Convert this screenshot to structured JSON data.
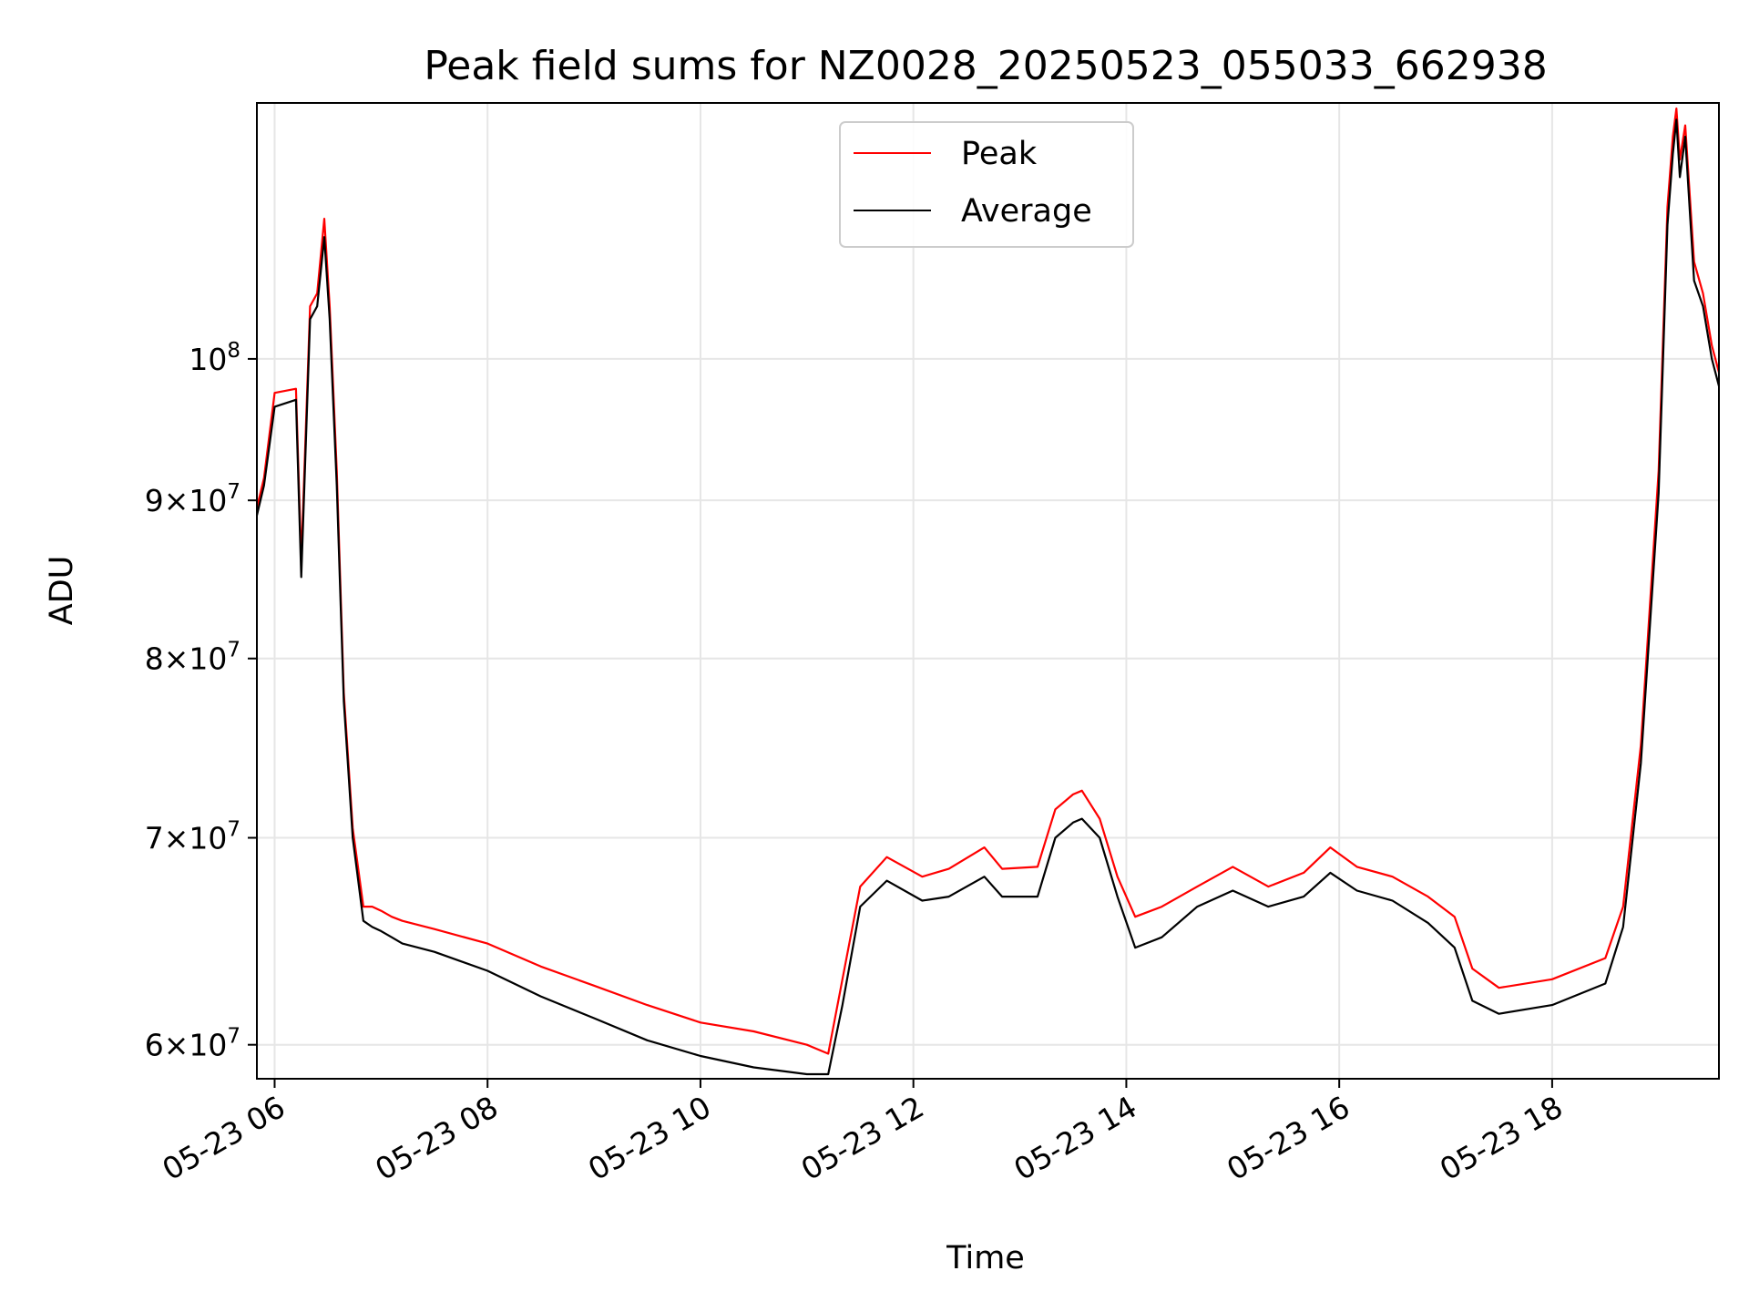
{
  "chart_data": {
    "type": "line",
    "title": "Peak field sums for NZ0028_20250523_055033_662938",
    "xlabel": "Time",
    "ylabel": "ADU",
    "yscale": "log",
    "grid": true,
    "legend_position": "top-center",
    "xlim": [
      "2025-05-23 05:50",
      "2025-05-23 19:34"
    ],
    "ylim": [
      58500000,
      121000000
    ],
    "x_ticks": [
      "05-23 06",
      "05-23 08",
      "05-23 10",
      "05-23 12",
      "05-23 14",
      "05-23 16",
      "05-23 18"
    ],
    "x_tick_times": [
      "2025-05-23 06:00",
      "2025-05-23 08:00",
      "2025-05-23 10:00",
      "2025-05-23 12:00",
      "2025-05-23 14:00",
      "2025-05-23 16:00",
      "2025-05-23 18:00"
    ],
    "y_ticks": [
      {
        "value": 60000000,
        "mant": "6",
        "exp": "7"
      },
      {
        "value": 70000000,
        "mant": "7",
        "exp": "7"
      },
      {
        "value": 80000000,
        "mant": "8",
        "exp": "7"
      },
      {
        "value": 90000000,
        "mant": "9",
        "exp": "7"
      },
      {
        "value": 100000000,
        "mant": "",
        "exp": "8"
      }
    ],
    "series": [
      {
        "name": "Peak",
        "color": "#ff0000",
        "x": [
          "2025-05-23 05:50",
          "2025-05-23 05:54",
          "2025-05-23 06:00",
          "2025-05-23 06:12",
          "2025-05-23 06:15",
          "2025-05-23 06:20",
          "2025-05-23 06:24",
          "2025-05-23 06:28",
          "2025-05-23 06:31",
          "2025-05-23 06:35",
          "2025-05-23 06:39",
          "2025-05-23 06:44",
          "2025-05-23 06:50",
          "2025-05-23 06:55",
          "2025-05-23 07:00",
          "2025-05-23 07:06",
          "2025-05-23 07:12",
          "2025-05-23 07:30",
          "2025-05-23 08:00",
          "2025-05-23 08:30",
          "2025-05-23 09:00",
          "2025-05-23 09:30",
          "2025-05-23 10:00",
          "2025-05-23 10:30",
          "2025-05-23 11:00",
          "2025-05-23 11:12",
          "2025-05-23 11:20",
          "2025-05-23 11:30",
          "2025-05-23 11:45",
          "2025-05-23 12:05",
          "2025-05-23 12:20",
          "2025-05-23 12:40",
          "2025-05-23 12:50",
          "2025-05-23 13:10",
          "2025-05-23 13:20",
          "2025-05-23 13:30",
          "2025-05-23 13:35",
          "2025-05-23 13:45",
          "2025-05-23 13:55",
          "2025-05-23 14:05",
          "2025-05-23 14:20",
          "2025-05-23 14:40",
          "2025-05-23 15:00",
          "2025-05-23 15:20",
          "2025-05-23 15:40",
          "2025-05-23 15:55",
          "2025-05-23 16:10",
          "2025-05-23 16:30",
          "2025-05-23 16:50",
          "2025-05-23 17:05",
          "2025-05-23 17:15",
          "2025-05-23 17:30",
          "2025-05-23 18:00",
          "2025-05-23 18:30",
          "2025-05-23 18:40",
          "2025-05-23 18:50",
          "2025-05-23 19:00",
          "2025-05-23 19:05",
          "2025-05-23 19:08",
          "2025-05-23 19:10",
          "2025-05-23 19:12",
          "2025-05-23 19:15",
          "2025-05-23 19:20",
          "2025-05-23 19:25",
          "2025-05-23 19:30",
          "2025-05-23 19:34"
        ],
        "y": [
          89500000,
          91500000,
          97500000,
          97800000,
          86000000,
          104000000,
          105000000,
          111000000,
          104000000,
          92000000,
          78000000,
          70500000,
          66500000,
          66500000,
          66300000,
          66000000,
          65800000,
          65400000,
          64700000,
          63600000,
          62700000,
          61800000,
          61000000,
          60600000,
          60000000,
          59600000,
          63000000,
          67500000,
          69000000,
          68000000,
          68400000,
          69500000,
          68400000,
          68500000,
          71500000,
          72300000,
          72500000,
          71000000,
          68000000,
          66000000,
          66500000,
          67500000,
          68500000,
          67500000,
          68200000,
          69500000,
          68500000,
          68000000,
          67000000,
          66000000,
          63500000,
          62600000,
          63000000,
          64000000,
          66500000,
          75000000,
          92000000,
          112000000,
          118000000,
          120500000,
          116000000,
          119000000,
          107500000,
          105000000,
          101000000,
          99000000
        ]
      },
      {
        "name": "Average",
        "color": "#000000",
        "x": [
          "2025-05-23 05:50",
          "2025-05-23 05:54",
          "2025-05-23 06:00",
          "2025-05-23 06:12",
          "2025-05-23 06:15",
          "2025-05-23 06:20",
          "2025-05-23 06:24",
          "2025-05-23 06:28",
          "2025-05-23 06:31",
          "2025-05-23 06:35",
          "2025-05-23 06:39",
          "2025-05-23 06:44",
          "2025-05-23 06:50",
          "2025-05-23 06:55",
          "2025-05-23 07:00",
          "2025-05-23 07:06",
          "2025-05-23 07:12",
          "2025-05-23 07:30",
          "2025-05-23 08:00",
          "2025-05-23 08:30",
          "2025-05-23 09:00",
          "2025-05-23 09:30",
          "2025-05-23 10:00",
          "2025-05-23 10:30",
          "2025-05-23 11:00",
          "2025-05-23 11:12",
          "2025-05-23 11:20",
          "2025-05-23 11:30",
          "2025-05-23 11:45",
          "2025-05-23 12:05",
          "2025-05-23 12:20",
          "2025-05-23 12:40",
          "2025-05-23 12:50",
          "2025-05-23 13:10",
          "2025-05-23 13:20",
          "2025-05-23 13:30",
          "2025-05-23 13:35",
          "2025-05-23 13:45",
          "2025-05-23 13:55",
          "2025-05-23 14:05",
          "2025-05-23 14:20",
          "2025-05-23 14:40",
          "2025-05-23 15:00",
          "2025-05-23 15:20",
          "2025-05-23 15:40",
          "2025-05-23 15:55",
          "2025-05-23 16:10",
          "2025-05-23 16:30",
          "2025-05-23 16:50",
          "2025-05-23 17:05",
          "2025-05-23 17:15",
          "2025-05-23 17:30",
          "2025-05-23 18:00",
          "2025-05-23 18:30",
          "2025-05-23 18:40",
          "2025-05-23 18:50",
          "2025-05-23 19:00",
          "2025-05-23 19:05",
          "2025-05-23 19:08",
          "2025-05-23 19:10",
          "2025-05-23 19:12",
          "2025-05-23 19:15",
          "2025-05-23 19:20",
          "2025-05-23 19:25",
          "2025-05-23 19:30",
          "2025-05-23 19:34"
        ],
        "y": [
          89000000,
          91000000,
          96500000,
          97000000,
          85000000,
          103000000,
          104000000,
          109500000,
          103000000,
          91000000,
          77500000,
          70000000,
          65800000,
          65500000,
          65300000,
          65000000,
          64700000,
          64300000,
          63400000,
          62200000,
          61200000,
          60200000,
          59500000,
          59000000,
          58700000,
          58700000,
          61800000,
          66500000,
          67800000,
          66800000,
          67000000,
          68000000,
          67000000,
          67000000,
          70000000,
          70800000,
          71000000,
          70000000,
          67000000,
          64500000,
          65000000,
          66500000,
          67300000,
          66500000,
          67000000,
          68200000,
          67300000,
          66800000,
          65700000,
          64500000,
          62000000,
          61400000,
          61800000,
          62800000,
          65500000,
          74000000,
          90500000,
          110500000,
          116500000,
          119500000,
          114500000,
          118000000,
          106000000,
          104000000,
          100000000,
          98000000
        ]
      }
    ]
  }
}
